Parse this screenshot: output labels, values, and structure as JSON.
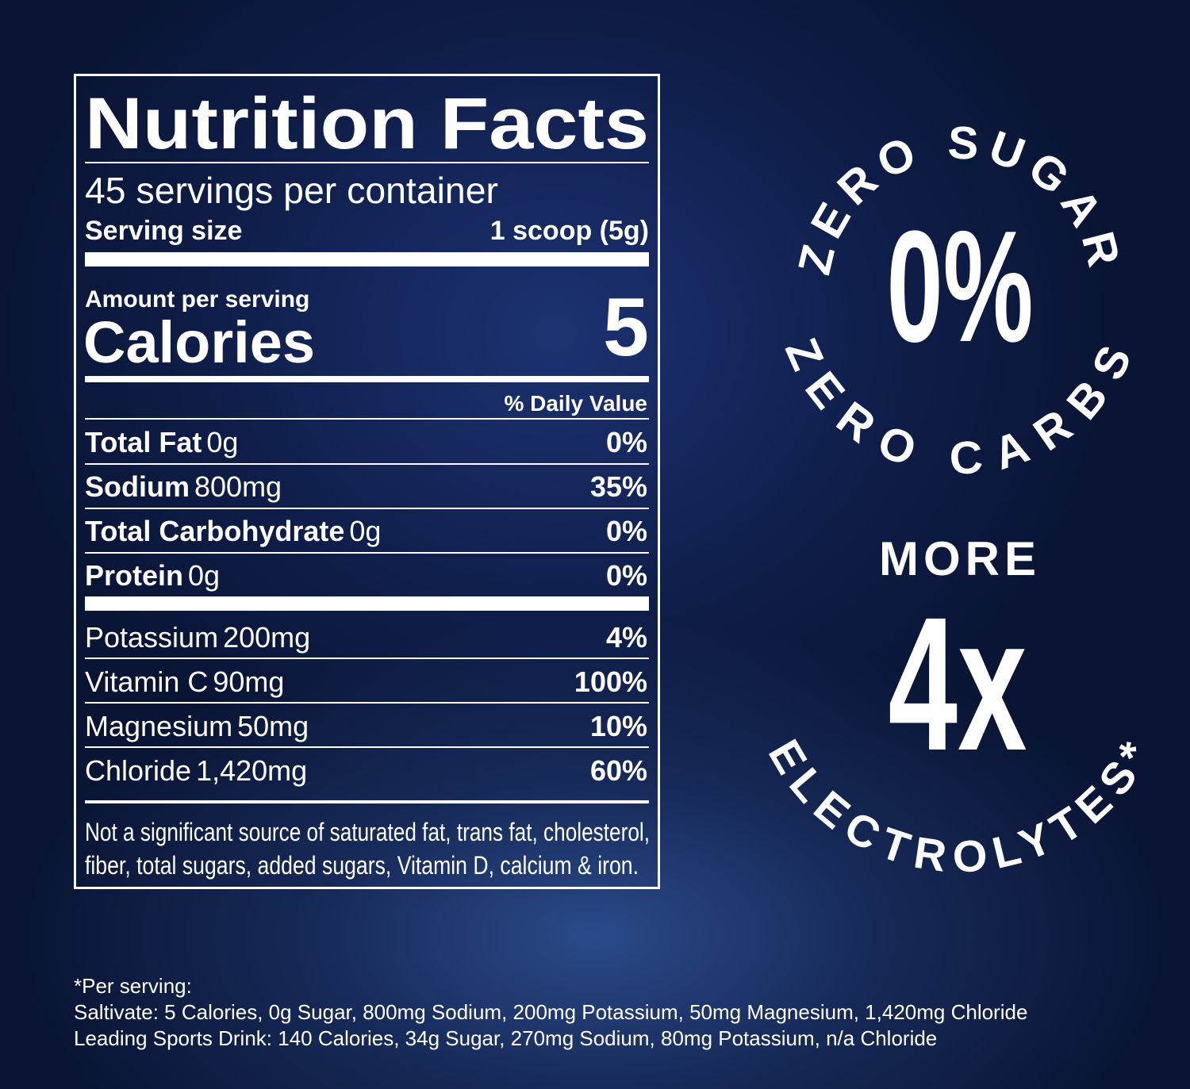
{
  "nutrition_facts": {
    "title": "Nutrition Facts",
    "servings": "45 servings per container",
    "serving_size_label": "Serving size",
    "serving_size": "1 scoop (5g)",
    "amount_per_serving": "Amount per serving",
    "calories_label": "Calories",
    "calories": "5",
    "daily_value_header": "% Daily Value",
    "nutrients": [
      {
        "name": "Total Fat",
        "amount": "0g",
        "daily_value": "0%"
      },
      {
        "name": "Sodium",
        "amount": "800mg",
        "daily_value": "35%"
      },
      {
        "name": "Total Carbohydrate",
        "amount": "0g",
        "daily_value": "0%"
      },
      {
        "name": "Protein",
        "amount": "0g",
        "daily_value": "0%"
      }
    ],
    "minerals": [
      {
        "name": "Potassium",
        "amount": "200mg",
        "daily_value": "4%"
      },
      {
        "name": "Vitamin C",
        "amount": "90mg",
        "daily_value": "100%"
      },
      {
        "name": "Magnesium",
        "amount": "50mg",
        "daily_value": "10%"
      },
      {
        "name": "Chloride",
        "amount": "1,420mg",
        "daily_value": "60%"
      }
    ],
    "footnote": [
      "Not a significant source of saturated fat, trans fat, cholesterol,",
      "fiber, total sugars, added sugars, Vitamin D, calcium & iron."
    ]
  },
  "badges": {
    "carbs": {
      "arc_top": "ZERO SUGAR",
      "big": "0%",
      "arc_bottom": "ZERO CARBS"
    },
    "electrolytes": {
      "top": "MORE",
      "big": "4x",
      "arc_bottom": "ELECTROLYTES*"
    }
  },
  "footnotes": [
    "*Per serving:",
    "Saltivate: 5 Calories, 0g Sugar, 800mg Sodium, 200mg Potassium, 50mg Magnesium, 1,420mg Chloride",
    "Leading Sports Drink: 140 Calories, 34g Sugar, 270mg Sodium, 80mg Potassium, n/a Chloride"
  ]
}
